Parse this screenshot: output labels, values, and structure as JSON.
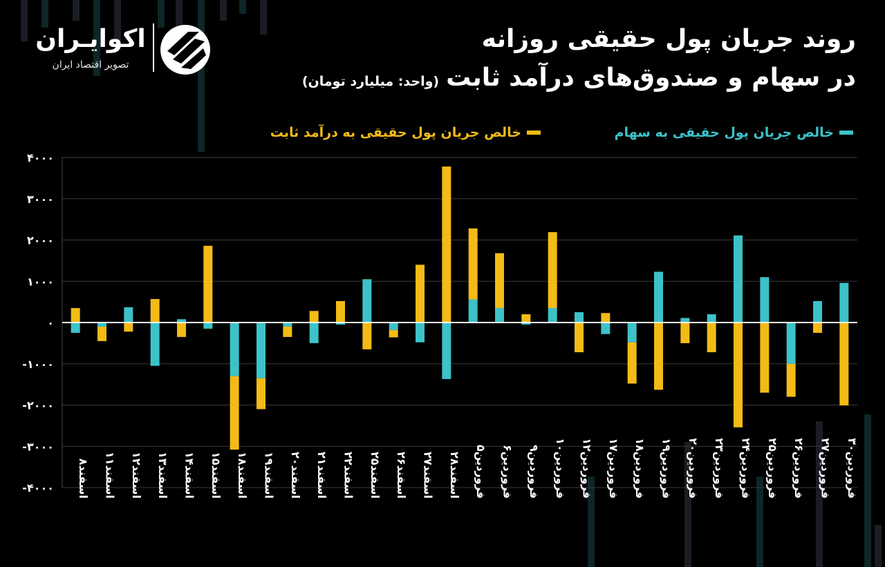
{
  "header": {
    "title_line1": "روند جریان پول حقیقی روزانه",
    "title_line2": "در سهام و صندوق‌های درآمد ثابت",
    "unit": "(واحد: میلیارد تومان)"
  },
  "brand": {
    "name": "اکوایـران",
    "tagline": "تصویر اقتصاد ایران"
  },
  "legend": {
    "stocks_label": "خالص جریان پول حقیقی به سهام",
    "fixed_label": "خالص جریان پول حقیقی به درآمد ثابت"
  },
  "colors": {
    "stocks": "#3cc2c8",
    "fixed_income": "#f3bb16",
    "background": "#000000"
  },
  "chart_data": {
    "type": "bar",
    "stacked": true,
    "ylim": [
      -4000,
      4000
    ],
    "yticks": [
      4000,
      3000,
      2000,
      1000,
      0,
      -1000,
      -2000,
      -3000,
      -4000
    ],
    "ytick_labels": [
      "۴۰۰۰",
      "۳۰۰۰",
      "۲۰۰۰",
      "۱۰۰۰",
      "۰",
      "-۱۰۰۰",
      "-۲۰۰۰",
      "-۳۰۰۰",
      "-۴۰۰۰"
    ],
    "grid": true,
    "legend_position": "top",
    "categories": [
      "اسفند۸",
      "اسفند۱۱",
      "اسفند۱۲",
      "اسفند۱۳",
      "اسفند۱۴",
      "اسفند۱۵",
      "اسفند۱۸",
      "اسفند۱۹",
      "اسفند۲۰",
      "اسفند۲۱",
      "اسفند۲۲",
      "اسفند۲۵",
      "اسفند۲۶",
      "اسفند۲۷",
      "اسفند۲۸",
      "فروردین۵",
      "فروردین۶",
      "فروردین۹",
      "فروردین۱۰",
      "فروردین۱۲",
      "فروردین۱۷",
      "فروردین۱۸",
      "فروردین۱۹",
      "فروردین۲۰",
      "فروردین۲۳",
      "فروردین۲۴",
      "فروردین۲۵",
      "فروردین۲۶",
      "فروردین۲۷",
      "فروردین۳۰"
    ],
    "series": [
      {
        "name": "خالص جریان پول حقیقی به سهام",
        "color": "#3cc2c8",
        "values": [
          -250,
          -100,
          370,
          -1050,
          80,
          -150,
          -1300,
          -1350,
          -100,
          -500,
          -50,
          1050,
          -180,
          -480,
          -1370,
          560,
          350,
          -50,
          350,
          250,
          -280,
          -480,
          1230,
          110,
          200,
          2110,
          1100,
          -1000,
          520,
          960
        ]
      },
      {
        "name": "خالص جریان پول حقیقی به درآمد ثابت",
        "color": "#f3bb16",
        "values": [
          350,
          -350,
          -220,
          570,
          -350,
          1860,
          -1780,
          -750,
          -250,
          280,
          520,
          -650,
          -180,
          1400,
          3780,
          1720,
          1330,
          200,
          1840,
          -720,
          230,
          -1000,
          -1630,
          -500,
          -720,
          -2540,
          -1700,
          -800,
          -250,
          -2010
        ]
      }
    ]
  }
}
